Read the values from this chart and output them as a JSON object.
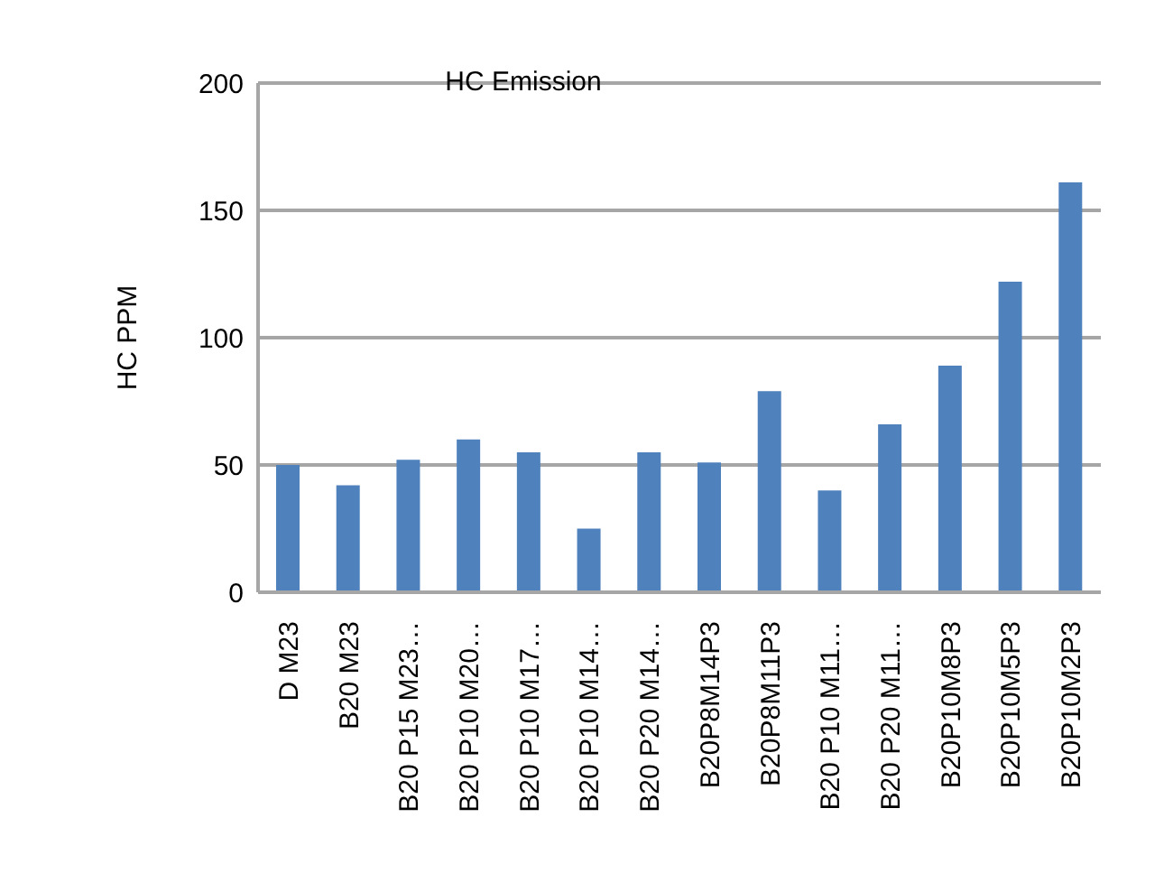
{
  "chart_data": {
    "type": "bar",
    "title": "HC Emission",
    "ylabel": "HC PPM",
    "categories": [
      "D M23",
      "B20 M23",
      "B20 P15 M23…",
      "B20 P10 M20…",
      "B20 P10 M17…",
      "B20 P10 M14…",
      "B20 P20 M14…",
      "B20P8M14P3",
      "B20P8M11P3",
      "B20 P10 M11…",
      "B20 P20 M11…",
      "B20P10M8P3",
      "B20P10M5P3",
      "B20P10M2P3"
    ],
    "values": [
      50,
      42,
      52,
      60,
      55,
      25,
      55,
      51,
      79,
      40,
      66,
      89,
      122,
      161
    ],
    "color": "#4f81bd",
    "ylim": [
      0,
      200
    ],
    "yticks": [
      0,
      50,
      100,
      150,
      200
    ],
    "grid": "y"
  }
}
